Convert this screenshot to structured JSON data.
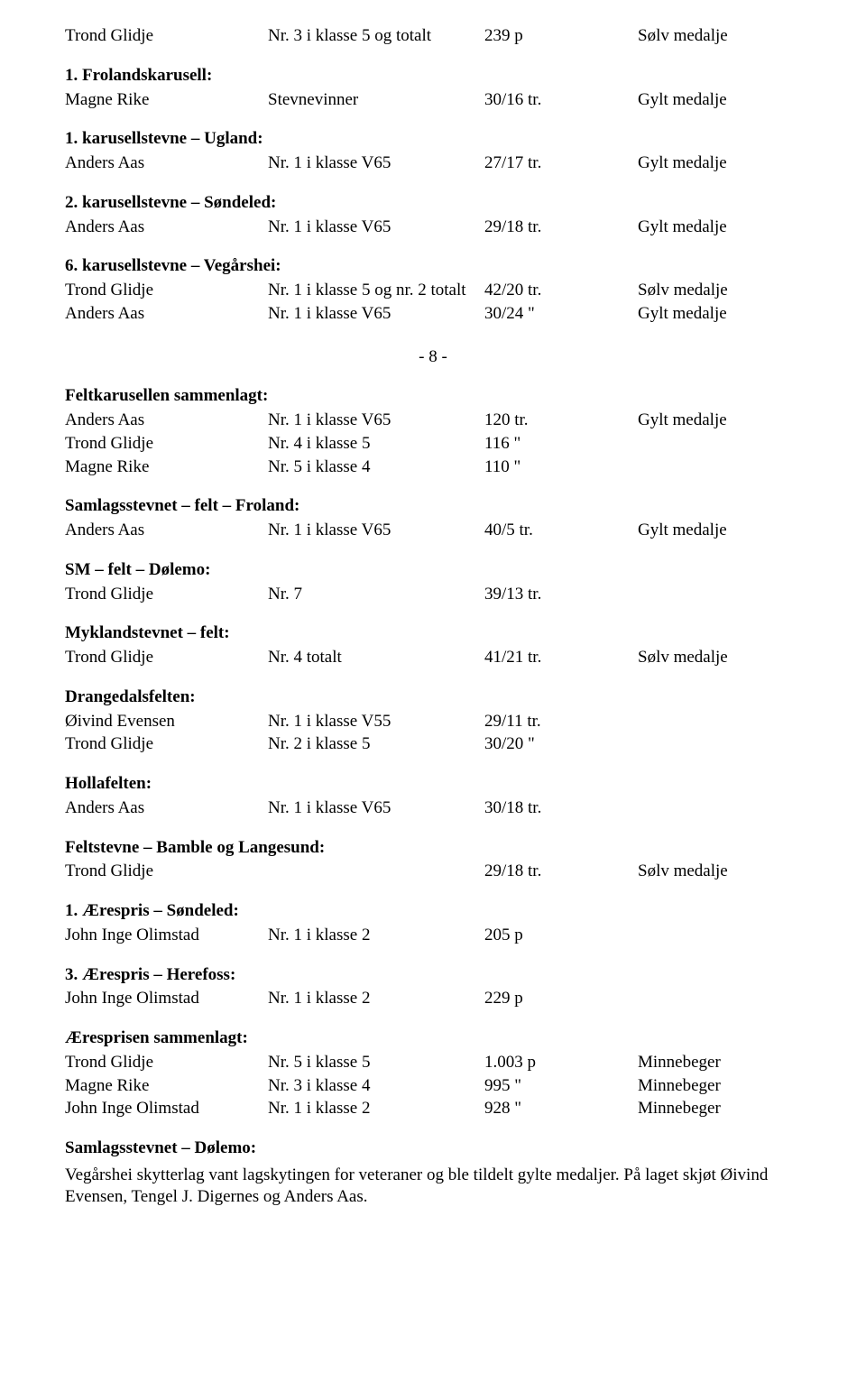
{
  "page_number_marker": "- 8 -",
  "top_rows": [
    {
      "c1": "Trond Glidje",
      "c2": "Nr. 3 i klasse 5 og totalt",
      "c3": "  239 p",
      "c4": "Sølv medalje"
    }
  ],
  "sections": [
    {
      "title": "1. Frolandskarusell:",
      "rows": [
        {
          "c1": "Magne Rike",
          "c2": "Stevnevinner",
          "c3": "30/16 tr.",
          "c4": "Gylt medalje"
        }
      ]
    },
    {
      "title": "1. karusellstevne – Ugland:",
      "rows": [
        {
          "c1": "Anders Aas",
          "c2": "Nr. 1 i klasse V65",
          "c3": "27/17 tr.",
          "c4": "Gylt medalje"
        }
      ]
    },
    {
      "title": "2. karusellstevne – Søndeled:",
      "rows": [
        {
          "c1": "Anders Aas",
          "c2": "Nr. 1 i klasse V65",
          "c3": "29/18 tr.",
          "c4": "Gylt medalje"
        }
      ]
    },
    {
      "title": "6. karusellstevne – Vegårshei:",
      "rows": [
        {
          "c1": "Trond Glidje",
          "c2": "Nr. 1 i klasse 5 og nr. 2 totalt",
          "c3": "42/20 tr.",
          "c4": "Sølv medalje"
        },
        {
          "c1": "Anders Aas",
          "c2": "Nr. 1 i klasse V65",
          "c3": "30/24 \"",
          "c4": "Gylt medalje"
        }
      ]
    }
  ],
  "sections2": [
    {
      "title": "Feltkarusellen sammenlagt:",
      "rows": [
        {
          "c1": "Anders Aas",
          "c2": "Nr. 1 i klasse V65",
          "c3": "  120 tr.",
          "c4": "Gylt medalje"
        },
        {
          "c1": "Trond Glidje",
          "c2": "Nr. 4 i klasse 5",
          "c3": "  116 \"",
          "c4": ""
        },
        {
          "c1": "Magne Rike",
          "c2": "Nr. 5 i klasse 4",
          "c3": "  110 \"",
          "c4": ""
        }
      ]
    },
    {
      "title": "Samlagsstevnet – felt – Froland:",
      "rows": [
        {
          "c1": "Anders Aas",
          "c2": "Nr. 1 i klasse V65",
          "c3": "40/5  tr.",
          "c4": "Gylt medalje"
        }
      ]
    },
    {
      "title": "SM – felt – Dølemo:",
      "rows": [
        {
          "c1": "Trond Glidje",
          "c2": "Nr. 7",
          "c3": "39/13 tr.",
          "c4": ""
        }
      ]
    },
    {
      "title": "Myklandstevnet – felt:",
      "rows": [
        {
          "c1": "Trond Glidje",
          "c2": "Nr. 4 totalt",
          "c3": "41/21 tr.",
          "c4": "Sølv medalje"
        }
      ]
    },
    {
      "title": "Drangedalsfelten:",
      "rows": [
        {
          "c1": "Øivind Evensen",
          "c2": "Nr. 1 i klasse V55",
          "c3": "29/11 tr.",
          "c4": ""
        },
        {
          "c1": "Trond Glidje",
          "c2": "Nr. 2 i klasse 5",
          "c3": "30/20 \"",
          "c4": ""
        }
      ]
    },
    {
      "title": "Hollafelten:",
      "rows": [
        {
          "c1": "Anders Aas",
          "c2": "Nr. 1 i klasse V65",
          "c3": "30/18 tr.",
          "c4": ""
        }
      ]
    },
    {
      "title": "Feltstevne – Bamble og Langesund:",
      "rows": [
        {
          "c1": "Trond Glidje",
          "c2": "",
          "c3": "29/18 tr.",
          "c4": "Sølv medalje"
        }
      ]
    },
    {
      "title": "1. Ærespris – Søndeled:",
      "rows": [
        {
          "c1": "John Inge Olimstad",
          "c2": "Nr. 1 i klasse 2",
          "c3": "  205 p",
          "c4": ""
        }
      ]
    },
    {
      "title": "3. Ærespris – Herefoss:",
      "rows": [
        {
          "c1": "John Inge Olimstad",
          "c2": "Nr. 1 i klasse 2",
          "c3": "  229 p",
          "c4": ""
        }
      ]
    },
    {
      "title": "Æresprisen sammenlagt:",
      "rows": [
        {
          "c1": "Trond Glidje",
          "c2": "Nr. 5 i klasse 5",
          "c3": "1.003 p",
          "c4": "Minnebeger"
        },
        {
          "c1": "Magne Rike",
          "c2": "Nr. 3 i klasse 4",
          "c3": "  995 \"",
          "c4": "Minnebeger"
        },
        {
          "c1": "John Inge Olimstad",
          "c2": "Nr. 1 i klasse 2",
          "c3": "  928 \"",
          "c4": "Minnebeger"
        }
      ]
    }
  ],
  "final_section": {
    "title": "Samlagsstevnet – Dølemo:",
    "paragraph": "Vegårshei skytterlag vant lagskytingen for veteraner og ble tildelt gylte medaljer. På laget skjøt Øivind Evensen, Tengel J. Digernes og Anders Aas."
  }
}
